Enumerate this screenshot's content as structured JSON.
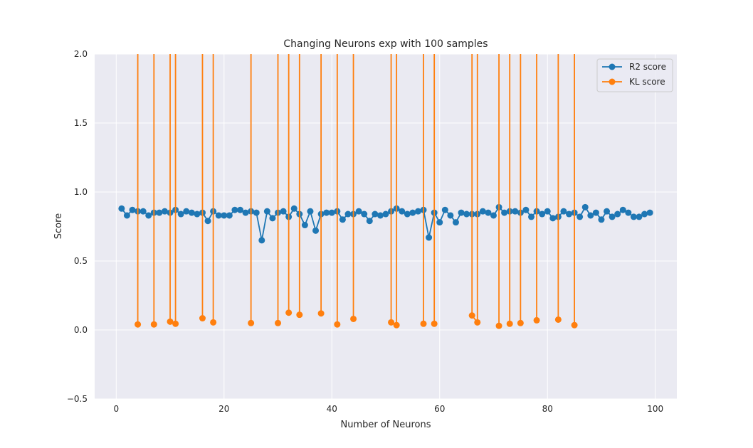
{
  "chart_data": {
    "type": "line",
    "title": "Changing Neurons exp with 100 samples",
    "xlabel": "Number of Neurons",
    "ylabel": "Score",
    "xlim": [
      -4,
      104
    ],
    "ylim": [
      -0.5,
      2.0
    ],
    "xticks": [
      0,
      20,
      40,
      60,
      80,
      100
    ],
    "yticks": [
      -0.5,
      0.0,
      0.5,
      1.0,
      1.5,
      2.0
    ],
    "xtick_labels": [
      "0",
      "20",
      "40",
      "60",
      "80",
      "100"
    ],
    "ytick_labels": [
      "−0.5",
      "0.0",
      "0.5",
      "1.0",
      "1.5",
      "2.0"
    ],
    "grid": true,
    "legend_position": "top-right",
    "series": [
      {
        "name": "R2 score",
        "color": "#1f77b4",
        "x": [
          1,
          2,
          3,
          4,
          5,
          6,
          7,
          8,
          9,
          10,
          11,
          12,
          13,
          14,
          15,
          16,
          17,
          18,
          19,
          20,
          21,
          22,
          23,
          24,
          25,
          26,
          27,
          28,
          29,
          30,
          31,
          32,
          33,
          34,
          35,
          36,
          37,
          38,
          39,
          40,
          41,
          42,
          43,
          44,
          45,
          46,
          47,
          48,
          49,
          50,
          51,
          52,
          53,
          54,
          55,
          56,
          57,
          58,
          59,
          60,
          61,
          62,
          63,
          64,
          65,
          66,
          67,
          68,
          69,
          70,
          71,
          72,
          73,
          74,
          75,
          76,
          77,
          78,
          79,
          80,
          81,
          82,
          83,
          84,
          85,
          86,
          87,
          88,
          89,
          90,
          91,
          92,
          93,
          94,
          95,
          96,
          97,
          98,
          99
        ],
        "y": [
          0.88,
          0.83,
          0.87,
          0.86,
          0.86,
          0.83,
          0.85,
          0.85,
          0.86,
          0.85,
          0.87,
          0.84,
          0.86,
          0.85,
          0.84,
          0.85,
          0.79,
          0.86,
          0.83,
          0.83,
          0.83,
          0.87,
          0.87,
          0.85,
          0.86,
          0.85,
          0.65,
          0.86,
          0.81,
          0.85,
          0.86,
          0.82,
          0.88,
          0.84,
          0.76,
          0.86,
          0.72,
          0.84,
          0.85,
          0.85,
          0.86,
          0.8,
          0.84,
          0.84,
          0.86,
          0.84,
          0.79,
          0.84,
          0.83,
          0.84,
          0.86,
          0.88,
          0.86,
          0.84,
          0.85,
          0.86,
          0.87,
          0.67,
          0.85,
          0.78,
          0.87,
          0.83,
          0.78,
          0.85,
          0.84,
          0.84,
          0.84,
          0.86,
          0.85,
          0.83,
          0.89,
          0.85,
          0.86,
          0.86,
          0.85,
          0.87,
          0.82,
          0.86,
          0.84,
          0.86,
          0.81,
          0.82,
          0.86,
          0.84,
          0.85,
          0.82,
          0.89,
          0.83,
          0.85,
          0.8,
          0.86,
          0.82,
          0.84,
          0.87,
          0.85,
          0.82,
          0.82,
          0.84,
          0.85
        ]
      },
      {
        "name": "KL score",
        "color": "#ff7f0e",
        "x": [
          1,
          2,
          3,
          4,
          5,
          6,
          7,
          8,
          9,
          10,
          11,
          12,
          13,
          14,
          15,
          16,
          17,
          18,
          19,
          20,
          21,
          22,
          23,
          24,
          25,
          26,
          27,
          28,
          29,
          30,
          31,
          32,
          33,
          34,
          35,
          36,
          37,
          38,
          39,
          40,
          41,
          42,
          43,
          44,
          45,
          46,
          47,
          48,
          49,
          50,
          51,
          52,
          53,
          54,
          55,
          56,
          57,
          58,
          59,
          60,
          61,
          62,
          63,
          64,
          65,
          66,
          67,
          68,
          69,
          70,
          71,
          72,
          73,
          74,
          75,
          76,
          77,
          78,
          79,
          80,
          81,
          82,
          83,
          84,
          85,
          86,
          87,
          88,
          89,
          90,
          91,
          92,
          93,
          94,
          95,
          96,
          97,
          98,
          99
        ],
        "y": [
          null,
          null,
          null,
          0.04,
          null,
          null,
          0.04,
          null,
          null,
          0.06,
          0.045,
          null,
          null,
          null,
          null,
          0.085,
          null,
          0.055,
          null,
          null,
          null,
          null,
          null,
          null,
          0.05,
          null,
          null,
          null,
          null,
          0.05,
          null,
          0.125,
          null,
          0.11,
          null,
          null,
          null,
          0.12,
          null,
          null,
          0.04,
          null,
          null,
          0.08,
          null,
          null,
          null,
          null,
          null,
          null,
          0.055,
          0.035,
          null,
          null,
          null,
          null,
          0.045,
          null,
          0.045,
          null,
          null,
          null,
          null,
          null,
          null,
          0.105,
          0.055,
          null,
          null,
          null,
          0.03,
          null,
          0.045,
          null,
          0.05,
          null,
          null,
          0.07,
          null,
          null,
          null,
          0.075,
          null,
          null,
          0.035,
          null,
          null,
          null,
          null,
          null,
          null,
          null,
          null,
          null,
          null,
          null,
          null,
          null,
          null
        ]
      }
    ]
  }
}
